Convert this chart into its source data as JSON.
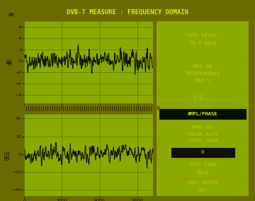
{
  "title": "DVB-T MEASURE : FREQUENCY DOMAIN",
  "bg_outer": "#6b6b00",
  "bg_screen": "#8aaa00",
  "bg_title": "#0a0a00",
  "grid_color": "#5a7800",
  "line_color": "#111100",
  "text_color": "#bbcc00",
  "highlight_color": "#ddee00",
  "panel_border": "#999900",
  "ampl_selected_bg": "#001100",
  "start_carr_box_bg": "#111100",
  "amp_ylabel": "dB",
  "amp_yticks": [
    -6,
    -4,
    -2,
    0,
    2,
    4,
    6
  ],
  "amp_ylim": [
    -7.5,
    7
  ],
  "phase_ylabel": "DEG",
  "phase_yticks": [
    -40,
    -20,
    0,
    20,
    40
  ],
  "phase_ylim": [
    -47,
    45
  ],
  "xticks": [
    0,
    2000,
    4000,
    6000
  ],
  "xlim": [
    0,
    6816
  ],
  "seed": 42,
  "n_points": 500
}
